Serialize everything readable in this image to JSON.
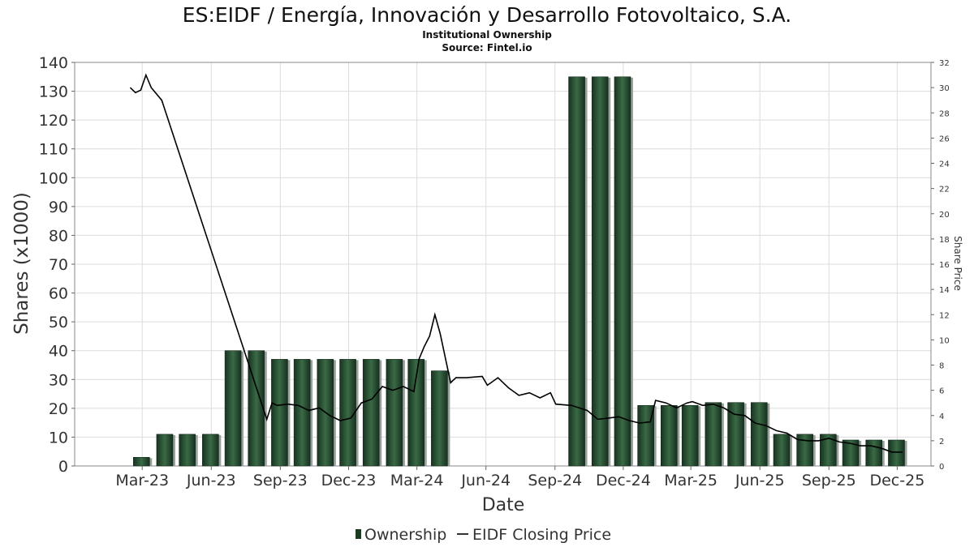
{
  "chart_data": {
    "type": "bar",
    "title": "ES:EIDF / Energía, Innovación y Desarrollo Fotovoltaico, S.A.",
    "subtitle": "Institutional Ownership",
    "source": "Source: Fintel.io",
    "xlabel": "Date",
    "ylabel": "Shares (x1000)",
    "y2label": "Share Price",
    "ylim": [
      0,
      140
    ],
    "y2lim": [
      0,
      32
    ],
    "yticks": [
      0,
      10,
      20,
      30,
      40,
      50,
      60,
      70,
      80,
      90,
      100,
      110,
      120,
      130,
      140
    ],
    "y2ticks": [
      0,
      2,
      4,
      6,
      8,
      10,
      12,
      14,
      16,
      18,
      20,
      22,
      24,
      26,
      28,
      30,
      32
    ],
    "xlim": [
      "2022-12-01",
      "2026-01-15"
    ],
    "xticks": [
      {
        "label": "Mar-23",
        "date": "2023-03-01"
      },
      {
        "label": "Jun-23",
        "date": "2023-06-01"
      },
      {
        "label": "Sep-23",
        "date": "2023-09-01"
      },
      {
        "label": "Dec-23",
        "date": "2023-12-01"
      },
      {
        "label": "Mar-24",
        "date": "2024-03-01"
      },
      {
        "label": "Jun-24",
        "date": "2024-06-01"
      },
      {
        "label": "Sep-24",
        "date": "2024-09-01"
      },
      {
        "label": "Dec-24",
        "date": "2024-12-01"
      },
      {
        "label": "Mar-25",
        "date": "2025-03-01"
      },
      {
        "label": "Jun-25",
        "date": "2025-06-01"
      },
      {
        "label": "Sep-25",
        "date": "2025-09-01"
      },
      {
        "label": "Dec-25",
        "date": "2025-12-01"
      }
    ],
    "legend": [
      {
        "name": "Ownership",
        "kind": "bar"
      },
      {
        "name": "EIDF Closing Price",
        "kind": "line"
      }
    ],
    "series": [
      {
        "name": "Ownership",
        "type": "bar",
        "unit": "shares x1000",
        "points": [
          {
            "date": "2023-02-28",
            "value": 3
          },
          {
            "date": "2023-03-31",
            "value": 11
          },
          {
            "date": "2023-04-30",
            "value": 11
          },
          {
            "date": "2023-05-31",
            "value": 11
          },
          {
            "date": "2023-06-30",
            "value": 40
          },
          {
            "date": "2023-07-31",
            "value": 40
          },
          {
            "date": "2023-08-31",
            "value": 37
          },
          {
            "date": "2023-09-30",
            "value": 37
          },
          {
            "date": "2023-10-31",
            "value": 37
          },
          {
            "date": "2023-11-30",
            "value": 37
          },
          {
            "date": "2023-12-31",
            "value": 37
          },
          {
            "date": "2024-01-31",
            "value": 37
          },
          {
            "date": "2024-02-29",
            "value": 37
          },
          {
            "date": "2024-03-31",
            "value": 33
          },
          {
            "date": "2024-09-30",
            "value": 135
          },
          {
            "date": "2024-10-31",
            "value": 135
          },
          {
            "date": "2024-11-30",
            "value": 135
          },
          {
            "date": "2024-12-31",
            "value": 21
          },
          {
            "date": "2025-01-31",
            "value": 21
          },
          {
            "date": "2025-02-28",
            "value": 21
          },
          {
            "date": "2025-03-31",
            "value": 22
          },
          {
            "date": "2025-04-30",
            "value": 22
          },
          {
            "date": "2025-05-31",
            "value": 22
          },
          {
            "date": "2025-06-30",
            "value": 11
          },
          {
            "date": "2025-07-31",
            "value": 11
          },
          {
            "date": "2025-08-31",
            "value": 11
          },
          {
            "date": "2025-09-30",
            "value": 9
          },
          {
            "date": "2025-10-31",
            "value": 9
          },
          {
            "date": "2025-11-30",
            "value": 9
          }
        ]
      },
      {
        "name": "EIDF Closing Price",
        "type": "line",
        "axis": "right",
        "points": [
          {
            "date": "2023-02-13",
            "value": 30.0
          },
          {
            "date": "2023-02-20",
            "value": 29.6
          },
          {
            "date": "2023-02-27",
            "value": 29.8
          },
          {
            "date": "2023-03-06",
            "value": 31.0
          },
          {
            "date": "2023-03-13",
            "value": 30.0
          },
          {
            "date": "2023-03-27",
            "value": 29.0
          },
          {
            "date": "2023-08-14",
            "value": 3.7
          },
          {
            "date": "2023-08-21",
            "value": 5.0
          },
          {
            "date": "2023-08-28",
            "value": 4.8
          },
          {
            "date": "2023-09-11",
            "value": 4.9
          },
          {
            "date": "2023-09-25",
            "value": 4.8
          },
          {
            "date": "2023-10-09",
            "value": 4.4
          },
          {
            "date": "2023-10-23",
            "value": 4.6
          },
          {
            "date": "2023-11-06",
            "value": 4.0
          },
          {
            "date": "2023-11-20",
            "value": 3.6
          },
          {
            "date": "2023-12-04",
            "value": 3.8
          },
          {
            "date": "2023-12-18",
            "value": 5.0
          },
          {
            "date": "2024-01-01",
            "value": 5.3
          },
          {
            "date": "2024-01-15",
            "value": 6.3
          },
          {
            "date": "2024-01-29",
            "value": 6.0
          },
          {
            "date": "2024-02-12",
            "value": 6.3
          },
          {
            "date": "2024-02-26",
            "value": 5.9
          },
          {
            "date": "2024-03-04",
            "value": 8.5
          },
          {
            "date": "2024-03-11",
            "value": 9.5
          },
          {
            "date": "2024-03-18",
            "value": 10.3
          },
          {
            "date": "2024-03-25",
            "value": 12.0
          },
          {
            "date": "2024-04-01",
            "value": 10.5
          },
          {
            "date": "2024-04-15",
            "value": 6.6
          },
          {
            "date": "2024-04-22",
            "value": 7.0
          },
          {
            "date": "2024-05-06",
            "value": 7.0
          },
          {
            "date": "2024-05-27",
            "value": 7.1
          },
          {
            "date": "2024-06-03",
            "value": 6.4
          },
          {
            "date": "2024-06-17",
            "value": 7.0
          },
          {
            "date": "2024-07-01",
            "value": 6.2
          },
          {
            "date": "2024-07-15",
            "value": 5.6
          },
          {
            "date": "2024-07-29",
            "value": 5.8
          },
          {
            "date": "2024-08-12",
            "value": 5.4
          },
          {
            "date": "2024-08-26",
            "value": 5.8
          },
          {
            "date": "2024-09-02",
            "value": 4.9
          },
          {
            "date": "2024-09-23",
            "value": 4.8
          },
          {
            "date": "2024-10-14",
            "value": 4.4
          },
          {
            "date": "2024-10-28",
            "value": 3.7
          },
          {
            "date": "2024-11-11",
            "value": 3.8
          },
          {
            "date": "2024-11-25",
            "value": 3.9
          },
          {
            "date": "2024-12-09",
            "value": 3.6
          },
          {
            "date": "2024-12-23",
            "value": 3.4
          },
          {
            "date": "2025-01-06",
            "value": 3.5
          },
          {
            "date": "2025-01-13",
            "value": 5.2
          },
          {
            "date": "2025-01-27",
            "value": 5.0
          },
          {
            "date": "2025-02-10",
            "value": 4.6
          },
          {
            "date": "2025-02-24",
            "value": 5.0
          },
          {
            "date": "2025-03-03",
            "value": 5.1
          },
          {
            "date": "2025-03-17",
            "value": 4.8
          },
          {
            "date": "2025-03-31",
            "value": 4.9
          },
          {
            "date": "2025-04-14",
            "value": 4.6
          },
          {
            "date": "2025-04-28",
            "value": 4.1
          },
          {
            "date": "2025-05-12",
            "value": 4.0
          },
          {
            "date": "2025-05-26",
            "value": 3.4
          },
          {
            "date": "2025-06-09",
            "value": 3.2
          },
          {
            "date": "2025-06-23",
            "value": 2.8
          },
          {
            "date": "2025-07-07",
            "value": 2.6
          },
          {
            "date": "2025-07-21",
            "value": 2.1
          },
          {
            "date": "2025-08-04",
            "value": 2.0
          },
          {
            "date": "2025-08-18",
            "value": 2.0
          },
          {
            "date": "2025-09-01",
            "value": 2.2
          },
          {
            "date": "2025-09-15",
            "value": 1.9
          },
          {
            "date": "2025-09-29",
            "value": 1.8
          },
          {
            "date": "2025-10-13",
            "value": 1.6
          },
          {
            "date": "2025-10-27",
            "value": 1.6
          },
          {
            "date": "2025-11-10",
            "value": 1.4
          },
          {
            "date": "2025-11-24",
            "value": 1.1
          },
          {
            "date": "2025-12-08",
            "value": 1.1
          }
        ]
      }
    ]
  },
  "colors": {
    "bar_dark": "#1b3a22",
    "bar_light": "#3b6a46",
    "bar_shadow": "#9aa09b",
    "line": "#000000",
    "grid": "#d9d9d9",
    "axis": "#666666",
    "text": "#333333"
  }
}
